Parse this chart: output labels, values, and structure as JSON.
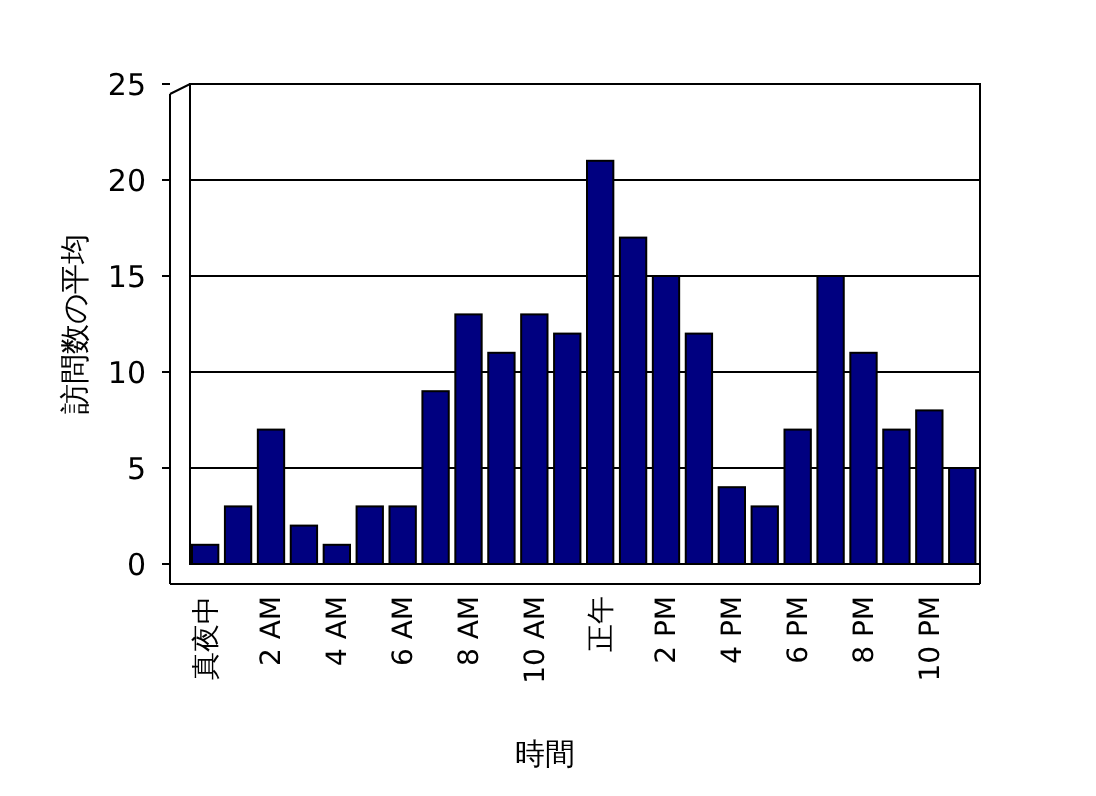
{
  "chart_data": {
    "type": "bar",
    "xlabel": "時間",
    "ylabel": "訪問数の平均",
    "categories": [
      "真夜中",
      null,
      "2 AM",
      null,
      "4 AM",
      null,
      "6 AM",
      null,
      "8 AM",
      null,
      "10 AM",
      null,
      "正午",
      null,
      "2 PM",
      null,
      "4 PM",
      null,
      "6 PM",
      null,
      "8 PM",
      null,
      "10 PM",
      null
    ],
    "values": [
      1,
      3,
      7,
      2,
      1,
      3,
      3,
      9,
      13,
      11,
      13,
      12,
      21,
      17,
      15,
      12,
      4,
      3,
      7,
      15,
      11,
      7,
      8,
      5
    ],
    "color": "#000080",
    "ylim": [
      0,
      25
    ],
    "yticks": [
      0,
      5,
      10,
      15,
      20,
      25
    ],
    "grid": "y"
  }
}
